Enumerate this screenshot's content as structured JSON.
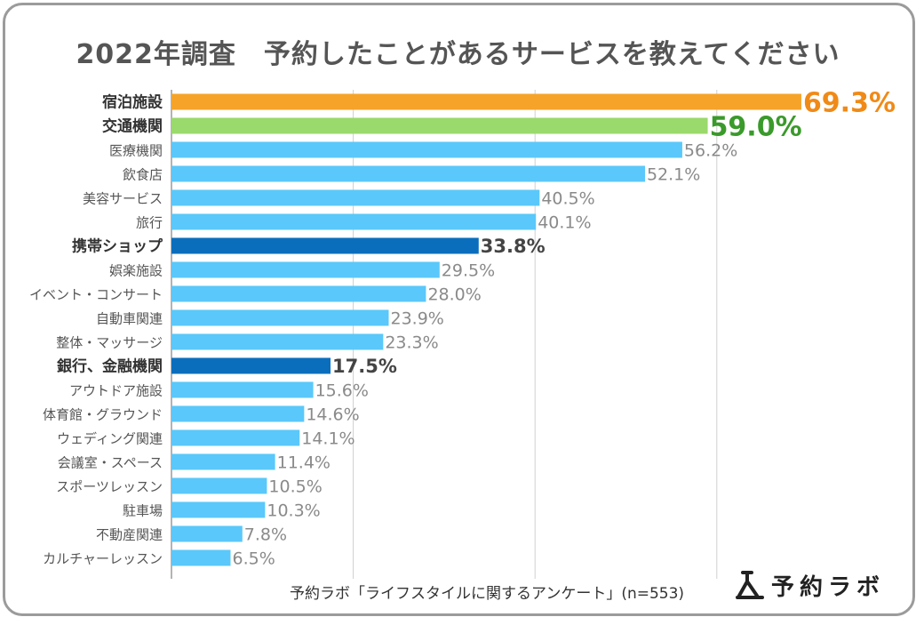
{
  "title": "2022年調査　予約したことがあるサービスを教えてください",
  "footer": "予約ラボ「ライフスタイルに関するアンケート」(n=553)",
  "logo": {
    "text": "予約ラボ"
  },
  "colors": {
    "default": "#5ac8fa",
    "first": "#f6a32a",
    "second": "#9ad96b",
    "dark": "#0a6ebd",
    "label_first": "#f08a17",
    "label_second": "#3a9a2b",
    "label_dark": "#444444",
    "label_default": "#8a8a8a",
    "grid": "#d0d0d0",
    "axis": "#9b9b9b"
  },
  "chart_data": {
    "type": "bar",
    "orientation": "horizontal",
    "title": "2022年調査　予約したことがあるサービスを教えてください",
    "xlim": [
      0,
      70
    ],
    "gridlines": [
      0,
      10,
      20,
      30
    ],
    "categories": [
      "宿泊施設",
      "交通機関",
      "医療機関",
      "飲食店",
      "美容サービス",
      "旅行",
      "携帯ショップ",
      "娯楽施設",
      "イベント・コンサート",
      "自動車関連",
      "整体・マッサージ",
      "銀行、金融機関",
      "アウトドア施設",
      "体育館・グラウンド",
      "ウェディング関連",
      "会議室・スペース",
      "スポーツレッスン",
      "駐車場",
      "不動産関連",
      "カルチャーレッスン"
    ],
    "values": [
      69.3,
      59.0,
      56.2,
      52.1,
      40.5,
      40.1,
      33.8,
      29.5,
      28.0,
      23.9,
      23.3,
      17.5,
      15.6,
      14.6,
      14.1,
      11.4,
      10.5,
      10.3,
      7.8,
      6.5
    ],
    "value_labels": [
      "69.3%",
      "59.0%",
      "56.2%",
      "52.1%",
      "40.5%",
      "40.1%",
      "33.8%",
      "29.5%",
      "28.0%",
      "23.9%",
      "23.3%",
      "17.5%",
      "15.6%",
      "14.6%",
      "14.1%",
      "11.4%",
      "10.5%",
      "10.3%",
      "7.8%",
      "6.5%"
    ],
    "styles": [
      "first",
      "second",
      "default",
      "default",
      "default",
      "default",
      "dark",
      "default",
      "default",
      "default",
      "default",
      "dark",
      "default",
      "default",
      "default",
      "default",
      "default",
      "default",
      "default",
      "default"
    ]
  }
}
